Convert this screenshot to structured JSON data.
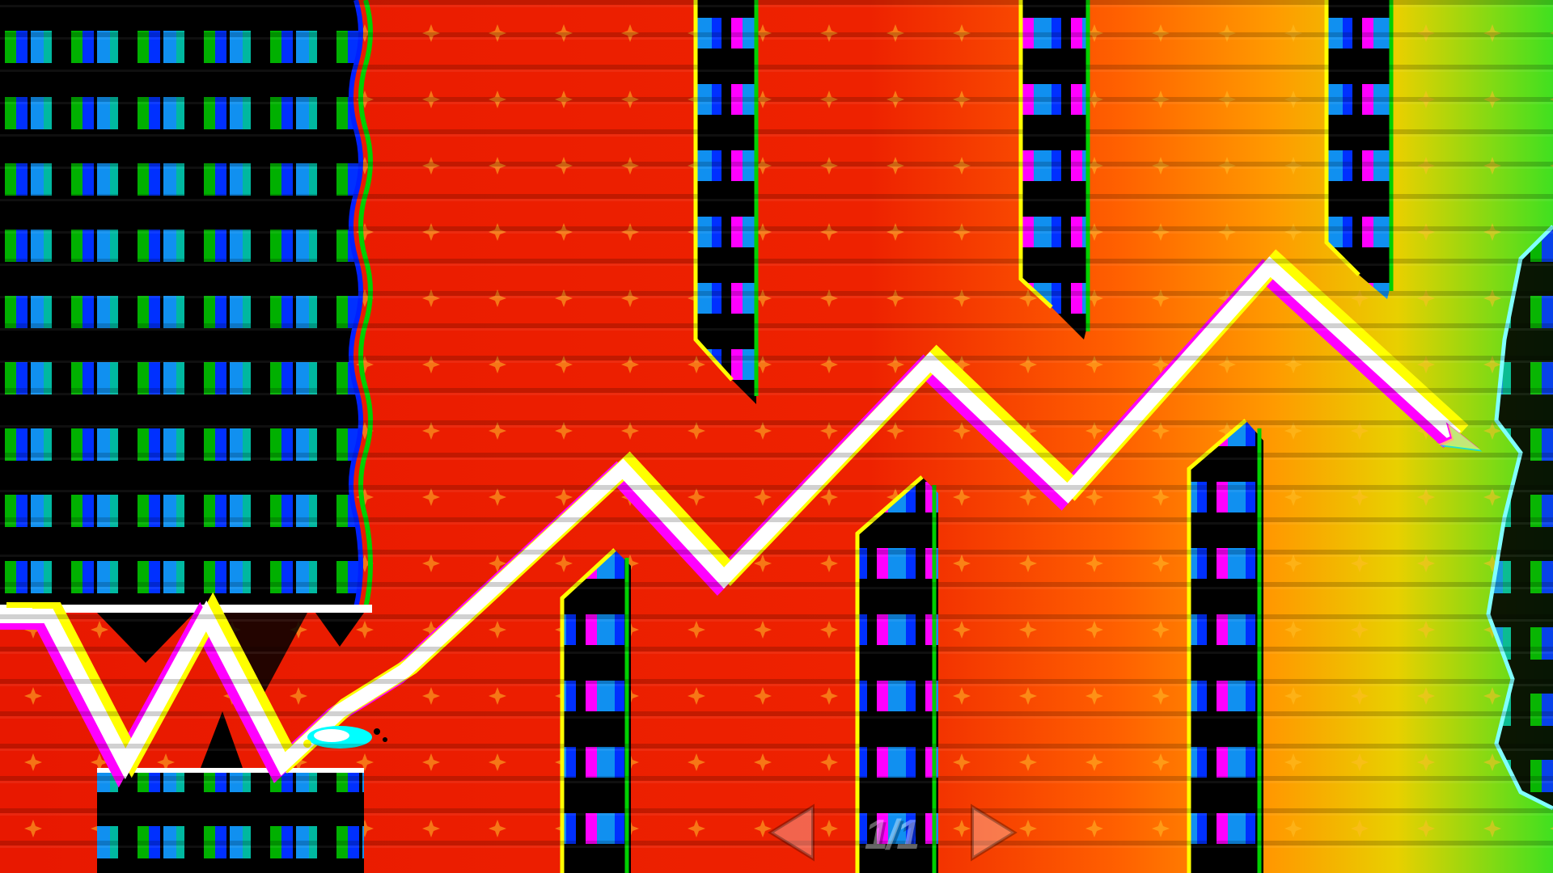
{
  "hud": {
    "page_indicator": "1/1",
    "prev_icon": "triangle-left-icon",
    "next_icon": "triangle-right-icon"
  },
  "colors": {
    "background_red": "#e81800",
    "background_orange": "#ff9000",
    "background_green": "#40e020",
    "trail": "#ffffff",
    "glitch_magenta": "#ff00ff",
    "glitch_yellow": "#ffff00",
    "glitch_green": "#00d000",
    "block_blue": "#1090f0"
  },
  "scene": {
    "player": "wave-icon",
    "obstacles": "striped-pillars",
    "effect": "chromatic-glitch"
  }
}
